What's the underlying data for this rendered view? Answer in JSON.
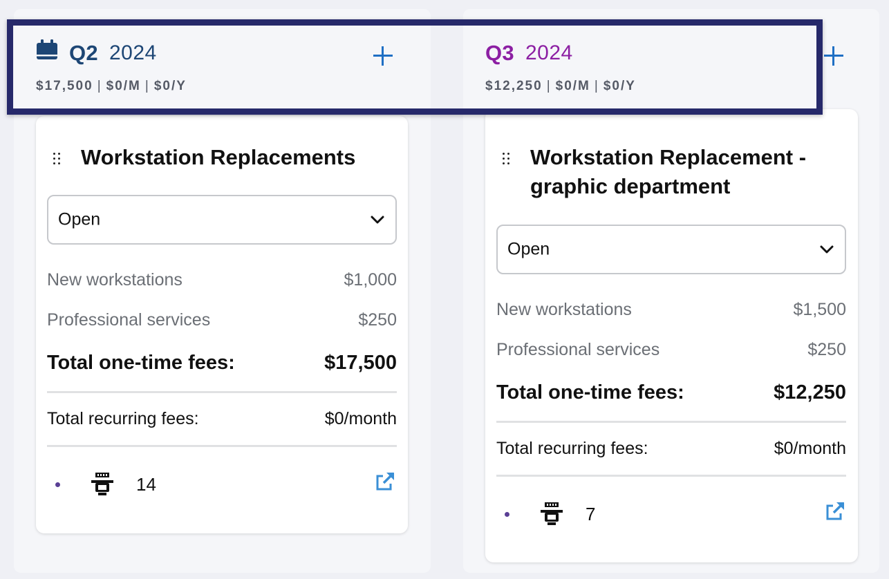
{
  "columns": [
    {
      "quarter": "Q2",
      "year": "2024",
      "summary": {
        "onetime": "$17,500",
        "monthly": "$0/M",
        "yearly": "$0/Y"
      },
      "card": {
        "title": "Workstation Replacements",
        "status": "Open",
        "line_items": [
          {
            "label": "New workstations",
            "amount": "$1,000"
          },
          {
            "label": "Professional services",
            "amount": "$250"
          }
        ],
        "total_onetime_label": "Total one-time fees:",
        "total_onetime_value": "$17,500",
        "total_recurring_label": "Total recurring fees:",
        "total_recurring_value": "$0/month",
        "device_count": "14"
      }
    },
    {
      "quarter": "Q3",
      "year": "2024",
      "summary": {
        "onetime": "$12,250",
        "monthly": "$0/M",
        "yearly": "$0/Y"
      },
      "card": {
        "title_line1": "Workstation Replacement -",
        "title_line2": "graphic department",
        "status": "Open",
        "line_items": [
          {
            "label": "New workstations",
            "amount": "$1,500"
          },
          {
            "label": "Professional services",
            "amount": "$250"
          }
        ],
        "total_onetime_label": "Total one-time fees:",
        "total_onetime_value": "$12,250",
        "total_recurring_label": "Total recurring fees:",
        "total_recurring_value": "$0/month",
        "device_count": "7"
      }
    }
  ],
  "separator": "|",
  "icons": {
    "calendar": "calendar-icon",
    "add": "plus-icon",
    "drag": "drag-handle-icon",
    "chevron": "chevron-down-icon",
    "device": "workstation-icon",
    "external": "external-link-icon"
  },
  "colors": {
    "q2_accent": "#1d4675",
    "q3_accent": "#8c1fa3",
    "add_button": "#1f6fc4",
    "highlight_border": "#26296a",
    "link": "#3a8fd6"
  }
}
